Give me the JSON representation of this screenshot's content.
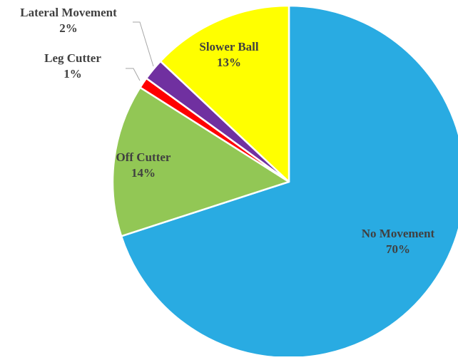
{
  "chart_data": {
    "type": "pie",
    "title": "",
    "start_angle_deg": 0,
    "direction": "clockwise",
    "slices": [
      {
        "label": "No Movement",
        "value": 70,
        "display": "70%",
        "color": "#29ABE2"
      },
      {
        "label": "Off Cutter",
        "value": 14,
        "display": "14%",
        "color": "#92C755"
      },
      {
        "label": "Leg Cutter",
        "value": 1,
        "display": "1%",
        "color": "#FF0000"
      },
      {
        "label": "Lateral Movement",
        "value": 2,
        "display": "2%",
        "color": "#7030A0"
      },
      {
        "label": "Slower Ball",
        "value": 13,
        "display": "13%",
        "color": "#FFFF00"
      }
    ],
    "label_color": "#404040",
    "leader_color": "#A6A6A6",
    "slice_border_color": "#FFFFFF"
  }
}
